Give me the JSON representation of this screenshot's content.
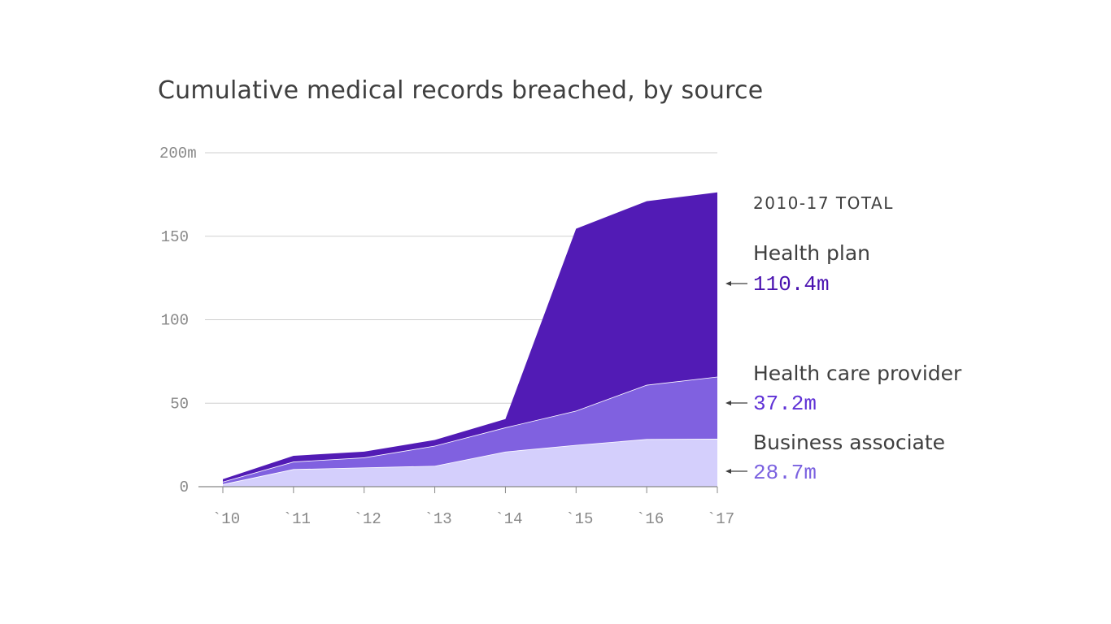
{
  "chart_data": {
    "type": "area",
    "stacked": true,
    "title": "Cumulative medical records breached, by source",
    "x_tick_labels": [
      "`10",
      "`11",
      "`12",
      "`13",
      "`14",
      "`15",
      "`16",
      "`17"
    ],
    "y_tick_labels": [
      "0",
      "50",
      "100",
      "150",
      "200m"
    ],
    "ylim": [
      0,
      200
    ],
    "y_ticks": [
      0,
      50,
      100,
      150,
      200
    ],
    "grid": true,
    "legend_position": "right",
    "totals_heading": "2010-17 TOTAL",
    "series": [
      {
        "name": "Business associate",
        "values": [
          1.5,
          10.5,
          11.5,
          12.5,
          21.0,
          25.0,
          28.5,
          28.7
        ],
        "total_label": "28.7m",
        "fill": "#d4cffc",
        "label_color": "#7b62e0"
      },
      {
        "name": "Health care provider",
        "values": [
          1.5,
          4.5,
          6.0,
          12.0,
          14.5,
          20.5,
          32.5,
          37.2
        ],
        "total_label": "37.2m",
        "fill": "#8061e0",
        "label_color": "#6033d6"
      },
      {
        "name": "Health plan",
        "values": [
          1.5,
          3.5,
          3.5,
          3.5,
          5.0,
          109.0,
          110.0,
          110.4
        ],
        "total_label": "110.4m",
        "fill": "#521bb5",
        "label_color": "#4a12b0"
      }
    ]
  }
}
